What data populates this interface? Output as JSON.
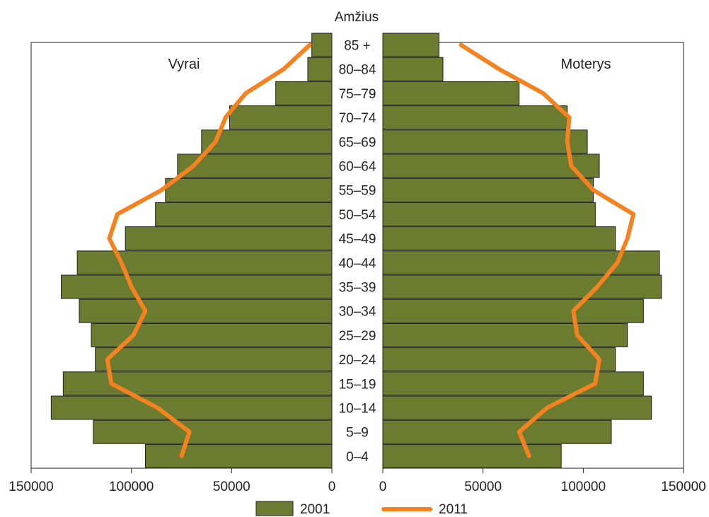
{
  "chart_data": {
    "type": "bar",
    "title": "Amžius",
    "left_label": "Vyrai",
    "right_label": "Moterys",
    "categories": [
      "0–4",
      "5–9",
      "10–14",
      "15–19",
      "20–24",
      "25–29",
      "30–34",
      "35–39",
      "40–44",
      "45–49",
      "50–54",
      "55–59",
      "60–64",
      "65–69",
      "70–74",
      "75–79",
      "80–84",
      "85 +"
    ],
    "series": [
      {
        "name": "2001",
        "type": "bar",
        "color": "#6b7b2f",
        "male": [
          93000,
          119000,
          140000,
          134000,
          118000,
          120000,
          126000,
          135000,
          127000,
          103000,
          88000,
          83000,
          77000,
          65000,
          51000,
          28000,
          12000,
          10000
        ],
        "female": [
          89000,
          114000,
          134000,
          130000,
          116000,
          122000,
          130000,
          139000,
          138000,
          116000,
          106000,
          105000,
          108000,
          102000,
          92000,
          68000,
          30000,
          28000
        ]
      },
      {
        "name": "2011",
        "type": "line",
        "color": "#f58220",
        "male": [
          75000,
          71000,
          87000,
          110000,
          112000,
          99000,
          93000,
          100000,
          105000,
          111000,
          107000,
          85000,
          69000,
          58000,
          53000,
          43000,
          24000,
          11000
        ],
        "female": [
          73000,
          68000,
          82000,
          106000,
          108000,
          97000,
          95000,
          107000,
          117000,
          122000,
          125000,
          105000,
          94000,
          92000,
          93000,
          80000,
          58000,
          39000
        ]
      }
    ],
    "x_ticks": [
      "150000",
      "100000",
      "50000",
      "0"
    ],
    "x_ticks_right": [
      "0",
      "50000",
      "100000",
      "150000"
    ],
    "xlim": [
      0,
      150000
    ],
    "legend": [
      {
        "label": "2001",
        "kind": "bar"
      },
      {
        "label": "2011",
        "kind": "line"
      }
    ],
    "legend_position": "bottom",
    "grid": false
  }
}
